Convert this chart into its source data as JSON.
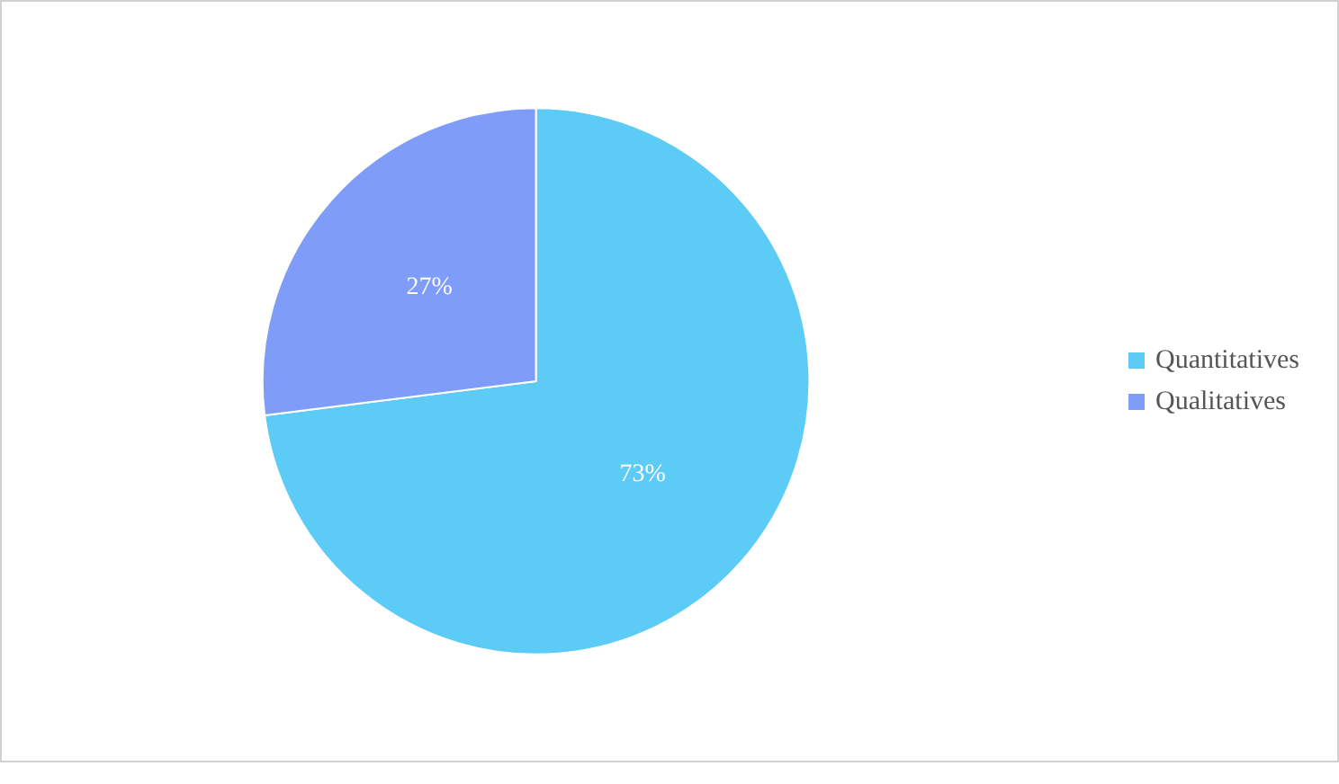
{
  "chart_data": {
    "type": "pie",
    "categories": [
      "Quantitatives",
      "Qualitatives"
    ],
    "values": [
      73,
      27
    ],
    "colors": [
      "#5ccbf6",
      "#7f9cf9"
    ],
    "value_labels": [
      "73%",
      "27%"
    ],
    "legend": "right"
  }
}
